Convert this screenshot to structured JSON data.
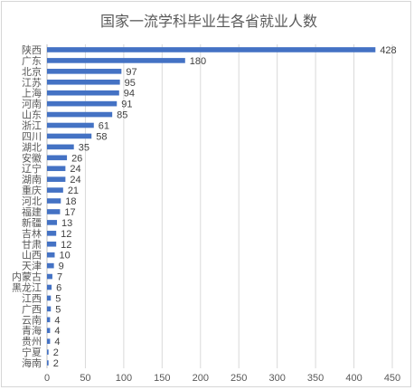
{
  "chart_data": {
    "type": "bar",
    "orientation": "horizontal",
    "title": "国家一流学科毕业生各省就业人数",
    "xlabel": "",
    "ylabel": "",
    "xlim": [
      0,
      450
    ],
    "xticks": [
      0,
      50,
      100,
      150,
      200,
      250,
      300,
      350,
      400,
      450
    ],
    "grid": true,
    "legend": "none",
    "bar_color": "#4472c4",
    "categories": [
      "陕西",
      "广东",
      "北京",
      "江苏",
      "上海",
      "河南",
      "山东",
      "浙江",
      "四川",
      "湖北",
      "安徽",
      "辽宁",
      "湖南",
      "重庆",
      "河北",
      "福建",
      "新疆",
      "吉林",
      "甘肃",
      "山西",
      "天津",
      "内蒙古",
      "黑龙江",
      "江西",
      "广西",
      "云南",
      "青海",
      "贵州",
      "宁夏",
      "海南"
    ],
    "values": [
      428,
      180,
      97,
      95,
      94,
      91,
      85,
      61,
      58,
      35,
      26,
      24,
      24,
      21,
      18,
      17,
      13,
      12,
      12,
      10,
      9,
      7,
      6,
      5,
      5,
      4,
      4,
      4,
      2,
      2
    ]
  }
}
